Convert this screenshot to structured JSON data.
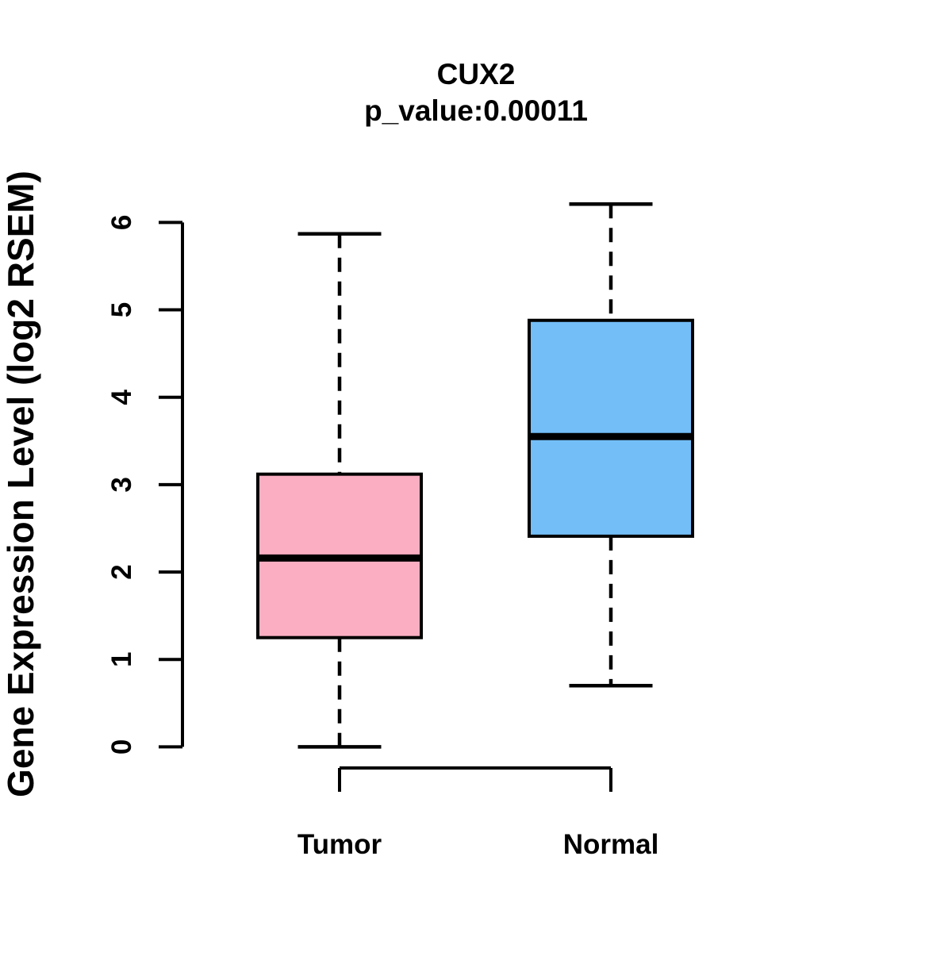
{
  "figure": {
    "title": "CUX2",
    "subtitle": "p_value:0.00011",
    "y_axis_label": "Gene Expression Level (log2 RSEM)"
  },
  "colors": {
    "tumor_fill": "#FBAEC2",
    "normal_fill": "#73BEF7",
    "line": "#000000",
    "background": "#FFFFFF"
  },
  "chart_data": {
    "type": "boxplot",
    "title": "CUX2",
    "subtitle": "p_value:0.00011",
    "xlabel": "",
    "ylabel": "Gene Expression Level (log2 RSEM)",
    "categories": [
      "Tumor",
      "Normal"
    ],
    "series": [
      {
        "name": "Tumor",
        "lower_whisker": 0.0,
        "q1": 1.25,
        "median": 2.16,
        "q3": 3.12,
        "upper_whisker": 5.87,
        "fill": "#FBAEC2"
      },
      {
        "name": "Normal",
        "lower_whisker": 0.7,
        "q1": 2.41,
        "median": 3.55,
        "q3": 4.88,
        "upper_whisker": 6.21,
        "fill": "#73BEF7"
      }
    ],
    "yticks": [
      0,
      1,
      2,
      3,
      4,
      5,
      6
    ],
    "ylim": [
      0,
      6.3
    ],
    "grid": false,
    "legend": false,
    "whisker_style": "dashed",
    "orientation": "vertical"
  }
}
